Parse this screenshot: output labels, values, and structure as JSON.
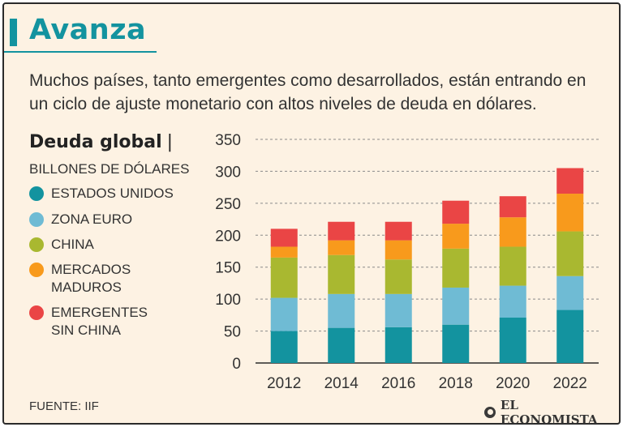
{
  "header": {
    "title": "Avanza",
    "subtitle": "Muchos países, tanto emergentes como desarrollados, están entrando en un ciclo de ajuste monetario con altos niveles de deuda en dólares."
  },
  "chart_data": {
    "type": "bar",
    "stacked": true,
    "title": "Deuda global",
    "title_separator": "|",
    "ylabel": "BILLONES DE DÓLARES",
    "xlabel": "",
    "ylim": [
      0,
      350
    ],
    "yticks": [
      0,
      50,
      100,
      150,
      200,
      250,
      300,
      350
    ],
    "grid": true,
    "legend_position": "left",
    "categories": [
      "2012",
      "2014",
      "2016",
      "2018",
      "2020",
      "2022"
    ],
    "series": [
      {
        "name": "ESTADOS UNIDOS",
        "color": "#13939f",
        "values": [
          50,
          55,
          56,
          60,
          71,
          83
        ]
      },
      {
        "name": "ZONA EURO",
        "color": "#6fbbd4",
        "values": [
          52,
          53,
          52,
          58,
          50,
          53
        ]
      },
      {
        "name": "CHINA",
        "color": "#a9b830",
        "values": [
          63,
          61,
          54,
          61,
          61,
          70
        ]
      },
      {
        "name": "MERCADOS\nMADUROS",
        "color": "#f89a1c",
        "values": [
          17,
          23,
          30,
          39,
          46,
          59
        ]
      },
      {
        "name": "EMERGENTES\nSIN CHINA",
        "color": "#ea4545",
        "values": [
          28,
          29,
          29,
          36,
          33,
          40
        ]
      }
    ]
  },
  "footer": {
    "source": "FUENTE: IIF",
    "brand": "EL ECONOMISTA"
  }
}
